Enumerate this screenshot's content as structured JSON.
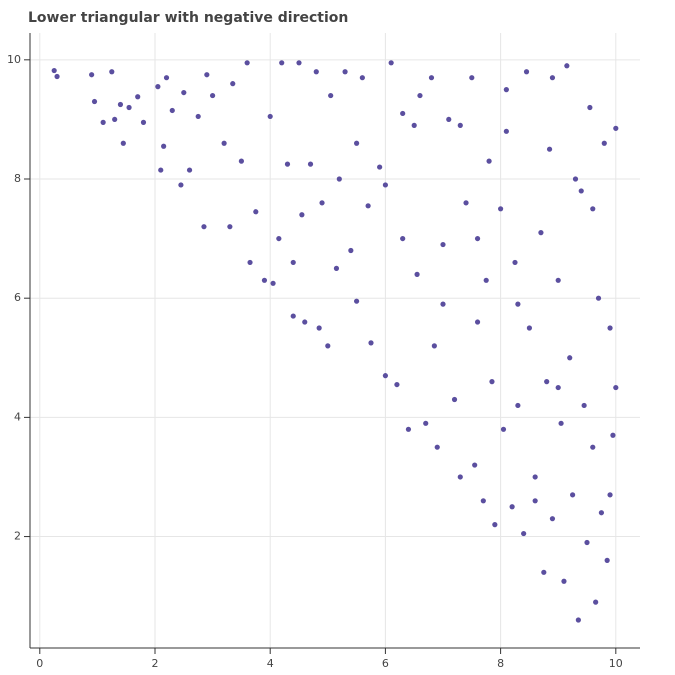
{
  "chart_data": {
    "type": "scatter",
    "title": "Lower triangular with negative direction",
    "color": "#5b4f9f",
    "grid": true,
    "xlim": [
      -0.17,
      10.42
    ],
    "ylim": [
      0.13,
      10.45
    ],
    "xticks": [
      0,
      2,
      4,
      6,
      8,
      10
    ],
    "yticks": [
      2,
      4,
      6,
      8,
      10
    ],
    "x": [
      0.25,
      0.3,
      0.9,
      0.95,
      1.1,
      1.25,
      1.3,
      1.4,
      1.45,
      1.55,
      1.7,
      1.8,
      2.05,
      2.1,
      2.15,
      2.2,
      2.3,
      2.45,
      2.5,
      2.6,
      2.75,
      2.85,
      2.9,
      3.2,
      3.3,
      3.35,
      3.5,
      3.6,
      3.65,
      3.75,
      3.9,
      4.0,
      4.05,
      4.15,
      4.2,
      4.3,
      4.4,
      4.5,
      4.55,
      4.6,
      4.7,
      4.85,
      4.9,
      5.0,
      5.05,
      5.15,
      5.3,
      5.4,
      5.5,
      5.6,
      5.7,
      5.75,
      5.9,
      6.0,
      6.1,
      6.2,
      6.3,
      6.4,
      6.5,
      6.55,
      6.7,
      6.8,
      6.85,
      6.9,
      7.0,
      7.1,
      7.2,
      7.3,
      7.4,
      7.5,
      7.55,
      7.6,
      7.7,
      7.75,
      7.85,
      7.9,
      8.0,
      8.05,
      8.1,
      8.2,
      8.25,
      8.3,
      8.4,
      8.45,
      8.5,
      8.6,
      8.7,
      8.75,
      8.8,
      8.85,
      8.9,
      9.0,
      9.05,
      9.1,
      9.15,
      9.2,
      9.25,
      9.35,
      9.4,
      9.45,
      9.5,
      9.55,
      9.6,
      9.65,
      9.7,
      9.75,
      9.8,
      9.85,
      9.9,
      9.95,
      10.0,
      10.0,
      3.0,
      4.8,
      6.6,
      7.8,
      8.9,
      9.3,
      7.0,
      8.3,
      6.0,
      5.2,
      4.4,
      7.6,
      9.0,
      8.6,
      9.9,
      6.3,
      5.5,
      7.3,
      8.1,
      9.6
    ],
    "y": [
      9.82,
      9.72,
      9.75,
      9.3,
      8.95,
      9.8,
      9.0,
      9.25,
      8.6,
      9.2,
      9.38,
      8.95,
      9.55,
      8.15,
      8.55,
      9.7,
      9.15,
      7.9,
      9.45,
      8.15,
      9.05,
      7.2,
      9.75,
      8.6,
      7.2,
      9.6,
      8.3,
      9.95,
      6.6,
      7.45,
      6.3,
      9.05,
      6.25,
      7.0,
      9.95,
      8.25,
      5.7,
      9.95,
      7.4,
      5.6,
      8.25,
      5.5,
      7.6,
      5.2,
      9.4,
      6.5,
      9.8,
      6.8,
      5.95,
      9.7,
      7.55,
      5.25,
      8.2,
      4.7,
      9.95,
      4.55,
      7.0,
      3.8,
      8.9,
      6.4,
      3.9,
      9.7,
      5.2,
      3.5,
      6.9,
      9.0,
      4.3,
      3.0,
      7.6,
      9.7,
      3.2,
      5.6,
      2.6,
      6.3,
      4.6,
      2.2,
      7.5,
      3.8,
      8.8,
      2.5,
      6.6,
      4.2,
      2.05,
      9.8,
      5.5,
      3.0,
      7.1,
      1.4,
      4.6,
      8.5,
      2.3,
      6.3,
      3.9,
      1.25,
      9.9,
      5.0,
      2.7,
      0.6,
      7.8,
      4.2,
      1.9,
      9.2,
      3.5,
      0.9,
      6.0,
      2.4,
      8.6,
      1.6,
      5.5,
      3.7,
      4.5,
      8.85,
      9.4,
      9.8,
      9.4,
      8.3,
      9.7,
      8.0,
      5.9,
      5.9,
      7.9,
      8.0,
      6.6,
      7.0,
      4.5,
      2.6,
      2.7,
      9.1,
      8.6,
      8.9,
      9.5,
      7.5
    ]
  }
}
